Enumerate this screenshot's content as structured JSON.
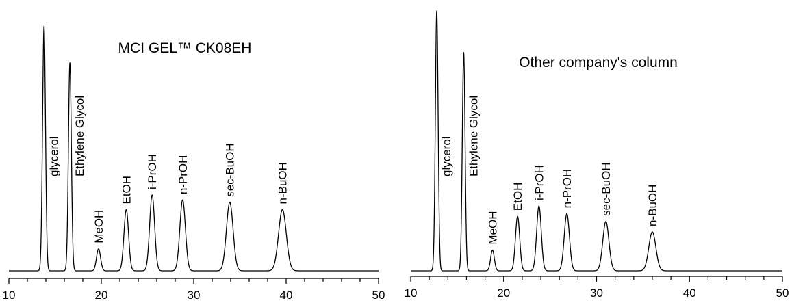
{
  "chart_data": [
    {
      "type": "line",
      "title": "MCI GEL™  CK08EH",
      "xlabel": "",
      "ylabel": "",
      "xlim": [
        10,
        50
      ],
      "ylim": [
        0,
        1
      ],
      "x_ticks": [
        10,
        20,
        30,
        40,
        50
      ],
      "x_tick_labels": [
        "10",
        "20",
        "30",
        "40",
        "50"
      ],
      "grid": false,
      "series": [
        {
          "peaks": [
            {
              "label": "glycerol",
              "x": 13.8,
              "height": 1.0,
              "width": 0.16
            },
            {
              "label": "Ethylene Glycol",
              "x": 16.6,
              "height": 0.85,
              "width": 0.16
            },
            {
              "label": "MeOH",
              "x": 19.7,
              "height": 0.09,
              "width": 0.22
            },
            {
              "label": "EtOH",
              "x": 22.7,
              "height": 0.25,
              "width": 0.25
            },
            {
              "label": "i-PrOH",
              "x": 25.5,
              "height": 0.31,
              "width": 0.27
            },
            {
              "label": "n-PrOH",
              "x": 28.8,
              "height": 0.29,
              "width": 0.3
            },
            {
              "label": "sec-BuOH",
              "x": 33.9,
              "height": 0.28,
              "width": 0.36
            },
            {
              "label": "n-BuOH",
              "x": 39.6,
              "height": 0.25,
              "width": 0.42
            }
          ]
        }
      ]
    },
    {
      "type": "line",
      "title": "Other company's column",
      "xlabel": "",
      "ylabel": "",
      "xlim": [
        10,
        50
      ],
      "ylim": [
        0,
        1
      ],
      "x_ticks": [
        10,
        20,
        30,
        40,
        50
      ],
      "x_tick_labels": [
        "10",
        "20",
        "30",
        "40",
        "50"
      ],
      "grid": false,
      "series": [
        {
          "peaks": [
            {
              "label": "glycerol",
              "x": 12.8,
              "height": 1.0,
              "width": 0.15
            },
            {
              "label": "Ethylene Glycol",
              "x": 15.7,
              "height": 0.84,
              "width": 0.15
            },
            {
              "label": "MeOH",
              "x": 18.8,
              "height": 0.08,
              "width": 0.2
            },
            {
              "label": "EtOH",
              "x": 21.5,
              "height": 0.21,
              "width": 0.23
            },
            {
              "label": "i-PrOH",
              "x": 23.8,
              "height": 0.25,
              "width": 0.25
            },
            {
              "label": "n-PrOH",
              "x": 26.8,
              "height": 0.22,
              "width": 0.28
            },
            {
              "label": "sec-BuOH",
              "x": 31.0,
              "height": 0.19,
              "width": 0.33
            },
            {
              "label": "n-BuOH",
              "x": 36.0,
              "height": 0.15,
              "width": 0.38
            }
          ]
        }
      ]
    }
  ]
}
